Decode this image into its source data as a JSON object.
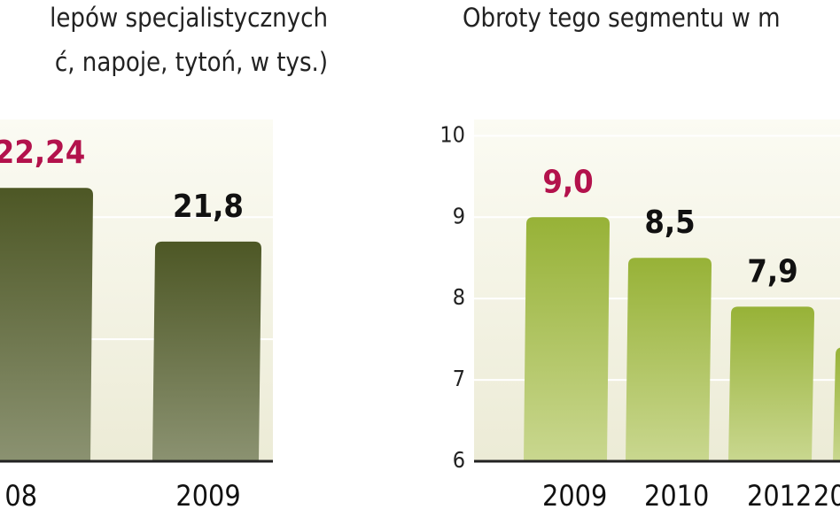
{
  "chart_data": [
    {
      "type": "bar",
      "title_lines": [
        "lepów specjalistycznych",
        "ć, napoje, tytoń, w tys.)"
      ],
      "categories": [
        "08",
        "2009"
      ],
      "values": [
        22.24,
        21.8
      ],
      "value_labels": [
        "22,24",
        "21,8"
      ],
      "value_label_colors": [
        "#b3124c",
        "#111111"
      ],
      "color": "#505a27",
      "ylim": [
        20,
        22.8
      ],
      "grid_values": [
        21,
        22
      ],
      "grid": true
    },
    {
      "type": "bar",
      "title_lines": [
        "Obroty tego segmentu w m"
      ],
      "categories": [
        "2009",
        "2010",
        "2012",
        "20"
      ],
      "values": [
        9.0,
        8.5,
        7.9,
        7.4
      ],
      "value_labels": [
        "9,0",
        "8,5",
        "7,9",
        null
      ],
      "value_label_colors": [
        "#b3124c",
        "#111111",
        "#111111",
        "#111111"
      ],
      "color": "#9ab53c",
      "ylim": [
        6,
        10.2
      ],
      "yticks": [
        6,
        7,
        8,
        9,
        10
      ],
      "grid": true
    }
  ]
}
